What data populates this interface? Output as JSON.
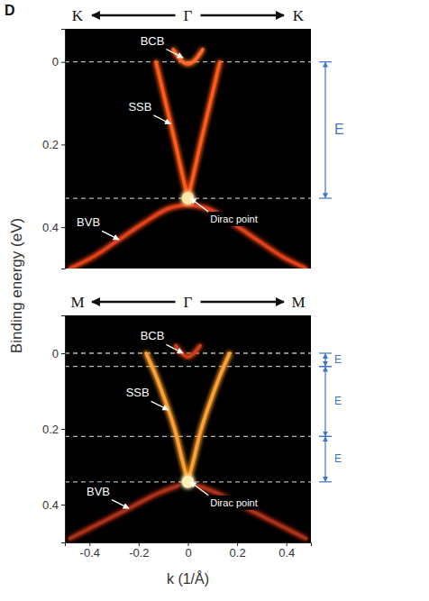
{
  "panel_label": "D",
  "y_label": "Binding energy (eV)",
  "chart_data": [
    {
      "type": "line",
      "directions": [
        "K",
        "Γ",
        "K"
      ],
      "xlim": [
        -0.5,
        0.5
      ],
      "ylim": [
        -0.08,
        0.5
      ],
      "yticks": [
        0,
        0.2,
        0.4
      ],
      "tick_labels": "y",
      "hlines": [
        0,
        0.33
      ],
      "brackets": [
        {
          "from": 0,
          "to": 0.33,
          "label": "E"
        }
      ],
      "annotations": [
        {
          "text": "BCB",
          "x": -0.02,
          "y": -0.01
        },
        {
          "text": "SSB",
          "x": -0.07,
          "y": 0.15
        },
        {
          "text": "BVB",
          "x": -0.28,
          "y": 0.43
        },
        {
          "text": "Dirac point",
          "x": 0.01,
          "y": 0.33
        }
      ],
      "series": [
        {
          "color": "#ff5a1f",
          "x": [
            -0.13,
            -0.09,
            -0.05,
            -0.02,
            0
          ],
          "values": [
            0,
            0.1,
            0.2,
            0.28,
            0.33
          ]
        },
        {
          "color": "#ff5a1f",
          "x": [
            0,
            0.02,
            0.05,
            0.09,
            0.13
          ],
          "values": [
            0.33,
            0.28,
            0.2,
            0.1,
            0
          ]
        },
        {
          "color": "#ff6a2a",
          "x": [
            -0.06,
            -0.03,
            0,
            0.03,
            0.06
          ],
          "values": [
            -0.03,
            -0.005,
            0.005,
            -0.005,
            -0.03
          ]
        },
        {
          "color": "#e0401a",
          "x": [
            -0.48,
            -0.38,
            -0.28,
            -0.18,
            -0.08,
            0
          ],
          "values": [
            0.5,
            0.47,
            0.43,
            0.39,
            0.355,
            0.345
          ]
        },
        {
          "color": "#e0401a",
          "x": [
            0,
            0.08,
            0.18,
            0.28,
            0.38,
            0.48
          ],
          "values": [
            0.345,
            0.355,
            0.39,
            0.43,
            0.47,
            0.5
          ]
        },
        {
          "type": "scatter",
          "marker": "circle",
          "color": "#ffe9a8",
          "x": [
            0
          ],
          "values": [
            0.33
          ]
        }
      ]
    },
    {
      "type": "line",
      "directions": [
        "M",
        "Γ",
        "M"
      ],
      "x_label": "k (1/Å)",
      "xlim": [
        -0.5,
        0.5
      ],
      "ylim": [
        -0.1,
        0.5
      ],
      "xticks": [
        -0.4,
        -0.2,
        0,
        0.2,
        0.4
      ],
      "yticks": [
        0,
        0.2,
        0.4
      ],
      "tick_labels": true,
      "hlines": [
        0,
        0.035,
        0.22,
        0.34
      ],
      "brackets": [
        {
          "from": 0,
          "to": 0.035,
          "label": "E"
        },
        {
          "from": 0.035,
          "to": 0.22,
          "label": "E"
        },
        {
          "from": 0.22,
          "to": 0.34,
          "label": "E"
        }
      ],
      "annotations": [
        {
          "text": "BCB",
          "x": -0.02,
          "y": 0
        },
        {
          "text": "SSB",
          "x": -0.08,
          "y": 0.15
        },
        {
          "text": "BVB",
          "x": -0.24,
          "y": 0.41
        },
        {
          "text": "Dirac point",
          "x": 0.01,
          "y": 0.34
        }
      ],
      "series": [
        {
          "color": "#ffa035",
          "x": [
            -0.17,
            -0.13,
            -0.09,
            -0.05,
            -0.02,
            0
          ],
          "values": [
            0,
            0.06,
            0.13,
            0.21,
            0.29,
            0.34
          ]
        },
        {
          "color": "#ffa035",
          "x": [
            0,
            0.02,
            0.05,
            0.09,
            0.13,
            0.17
          ],
          "values": [
            0.34,
            0.29,
            0.21,
            0.13,
            0.06,
            0
          ]
        },
        {
          "color": "#c9401c",
          "x": [
            -0.05,
            -0.025,
            0,
            0.025,
            0.05
          ],
          "values": [
            -0.02,
            0,
            0.01,
            0,
            -0.02
          ]
        },
        {
          "color": "#a8301a",
          "x": [
            -0.48,
            -0.36,
            -0.24,
            -0.12,
            -0.04
          ],
          "values": [
            0.49,
            0.45,
            0.41,
            0.37,
            0.35
          ]
        },
        {
          "color": "#a8301a",
          "x": [
            0.04,
            0.12,
            0.24,
            0.36,
            0.48
          ],
          "values": [
            0.35,
            0.37,
            0.41,
            0.45,
            0.49
          ]
        },
        {
          "type": "scatter",
          "marker": "circle",
          "color": "#fff0b8",
          "x": [
            0
          ],
          "values": [
            0.34
          ]
        }
      ]
    }
  ]
}
